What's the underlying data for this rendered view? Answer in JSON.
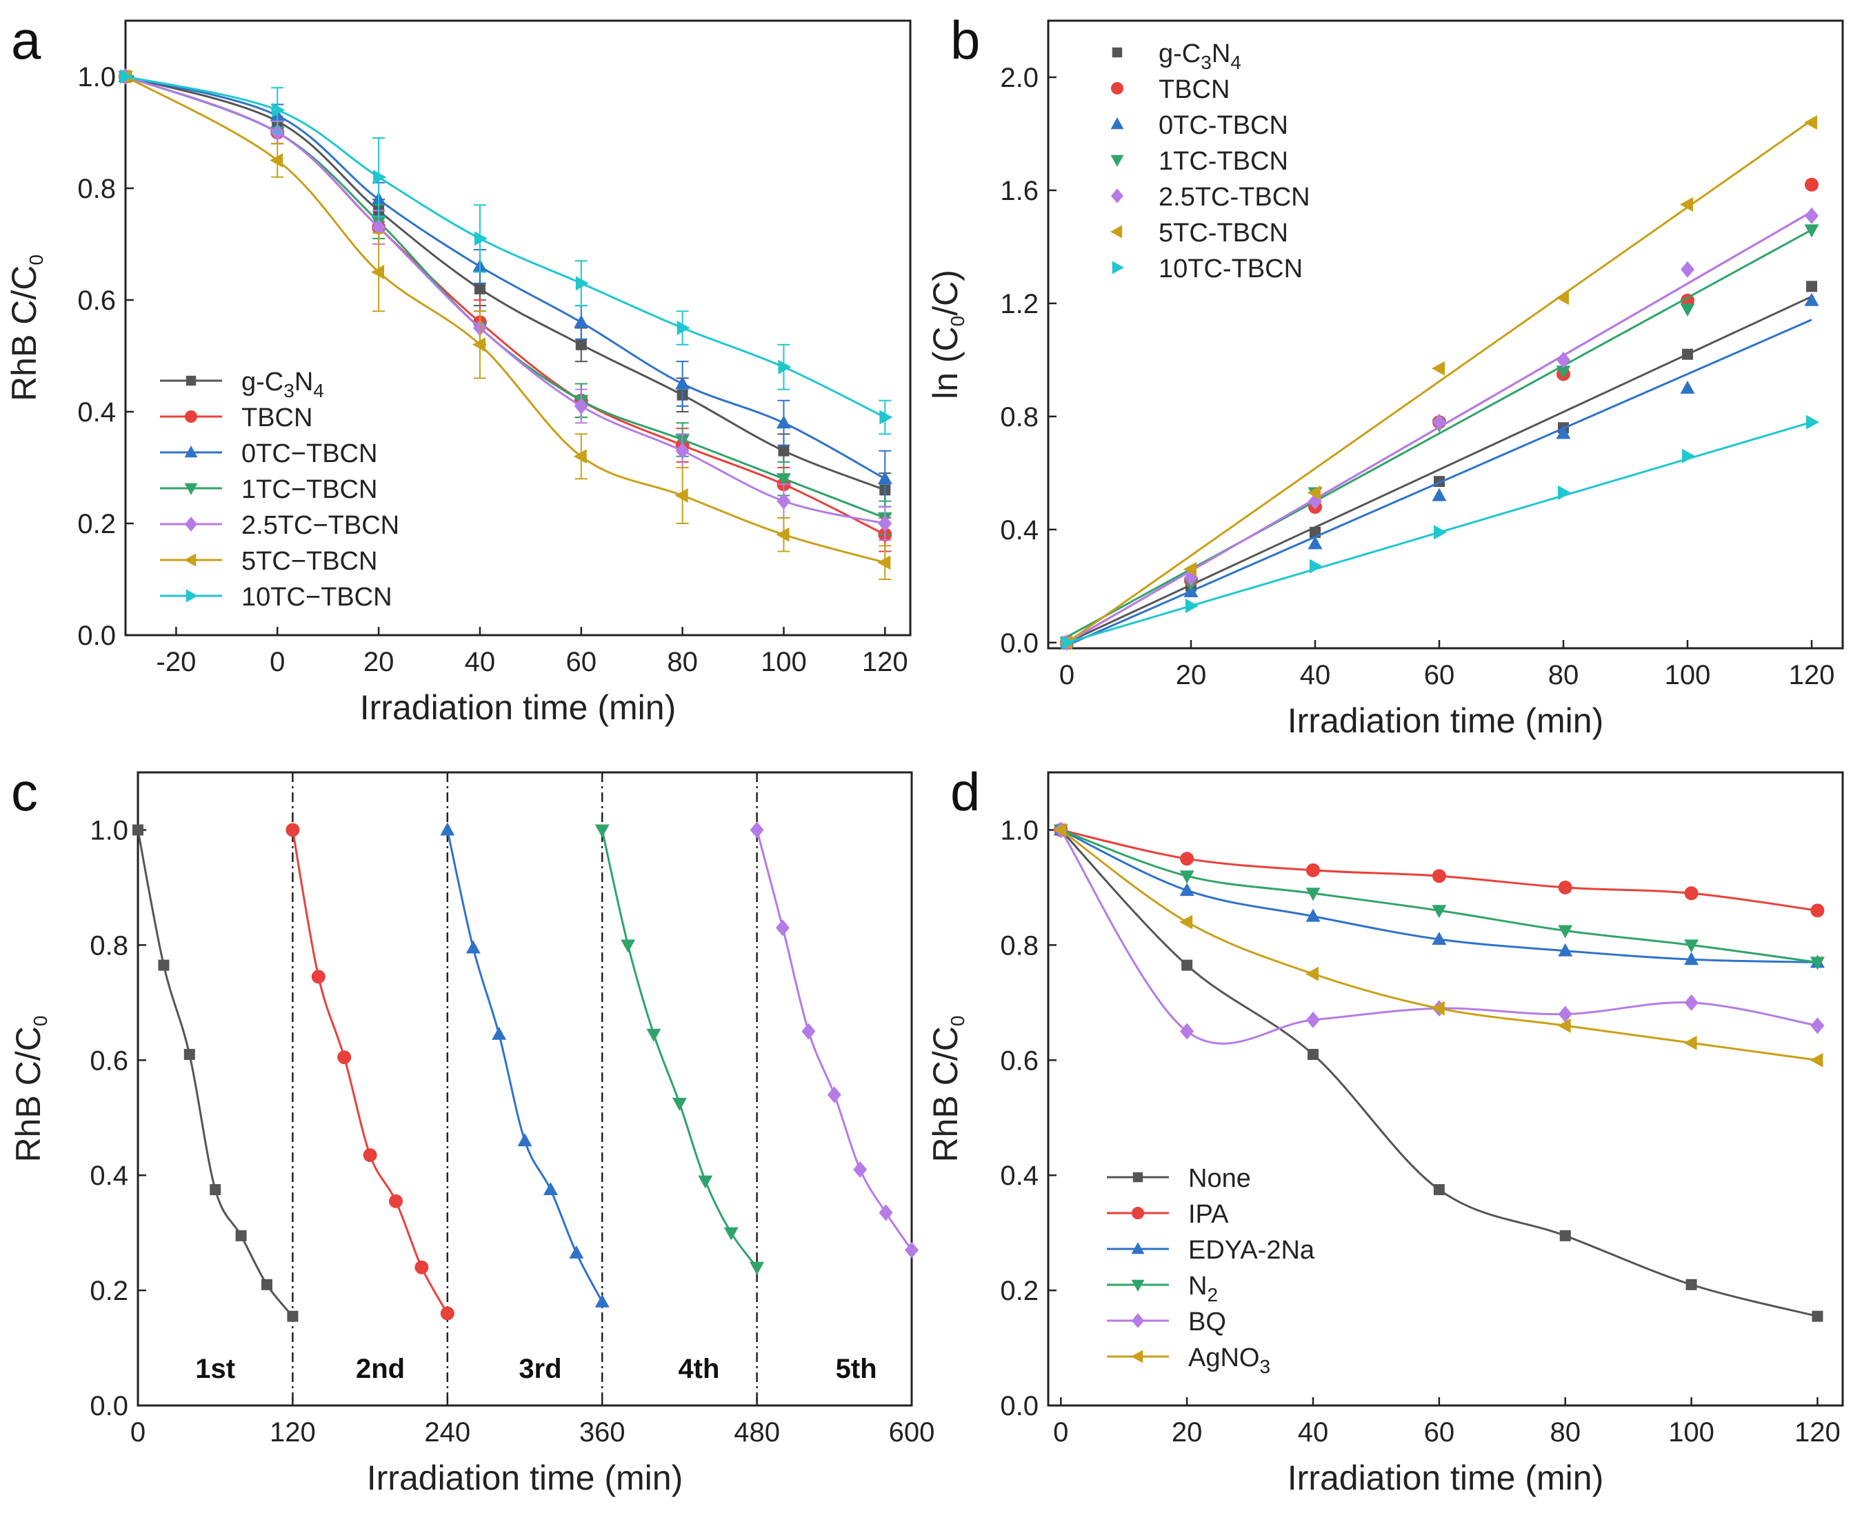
{
  "colors": {
    "g-C3N4": "#555555",
    "TBCN": "#e8413c",
    "0TC-TBCN": "#2f73c9",
    "1TC-TBCN": "#2fa46a",
    "2.5TC-TBCN": "#b57be6",
    "5TC-TBCN": "#c9a018",
    "10TC-TBCN": "#1fc7cf"
  },
  "chart_data": [
    {
      "panel_label": "a",
      "type": "line",
      "xlabel": "Irradiation time (min)",
      "ylabel": "RhB C/C",
      "ylabel_sub": "0",
      "xlim": [
        -30,
        125
      ],
      "ylim": [
        0,
        1.1
      ],
      "xticks": [
        -20,
        0,
        20,
        40,
        60,
        80,
        100,
        120
      ],
      "yticks": [
        0.0,
        0.2,
        0.4,
        0.6,
        0.8,
        1.0
      ],
      "legend": "bottom-left",
      "x": [
        -30,
        0,
        20,
        40,
        60,
        80,
        100,
        120
      ],
      "series": [
        {
          "name": "g-C3N4",
          "label": "g-C",
          "sub1": "3",
          "mid": "N",
          "sub2": "4",
          "marker": "square",
          "values": [
            1.0,
            0.92,
            0.76,
            0.62,
            0.52,
            0.43,
            0.33,
            0.26
          ],
          "errors": [
            0,
            0.02,
            0.02,
            0.03,
            0.03,
            0.03,
            0.03,
            0.03
          ]
        },
        {
          "name": "TBCN",
          "label": "TBCN",
          "marker": "circle",
          "values": [
            1.0,
            0.9,
            0.73,
            0.56,
            0.42,
            0.34,
            0.27,
            0.18
          ],
          "errors": [
            0,
            0.02,
            0.03,
            0.04,
            0.03,
            0.03,
            0.03,
            0.03
          ]
        },
        {
          "name": "0TC-TBCN",
          "label": "0TC−TBCN",
          "marker": "triangle-up",
          "values": [
            1.0,
            0.93,
            0.78,
            0.66,
            0.56,
            0.45,
            0.38,
            0.28
          ],
          "errors": [
            0,
            0.02,
            0.03,
            0.03,
            0.03,
            0.04,
            0.04,
            0.05
          ]
        },
        {
          "name": "1TC-TBCN",
          "label": "1TC−TBCN",
          "marker": "triangle-down",
          "values": [
            1.0,
            0.9,
            0.74,
            0.55,
            0.42,
            0.35,
            0.28,
            0.21
          ],
          "errors": [
            0,
            0.02,
            0.03,
            0.03,
            0.03,
            0.03,
            0.03,
            0.03
          ]
        },
        {
          "name": "2.5TC-TBCN",
          "label": "2.5TC−TBCN",
          "marker": "diamond",
          "values": [
            1.0,
            0.9,
            0.73,
            0.55,
            0.41,
            0.33,
            0.24,
            0.2
          ],
          "errors": [
            0,
            0.02,
            0.03,
            0.03,
            0.03,
            0.03,
            0.03,
            0.03
          ]
        },
        {
          "name": "5TC-TBCN",
          "label": "5TC−TBCN",
          "marker": "triangle-left",
          "values": [
            1.0,
            0.85,
            0.65,
            0.52,
            0.32,
            0.25,
            0.18,
            0.13
          ],
          "errors": [
            0,
            0.03,
            0.07,
            0.06,
            0.04,
            0.05,
            0.03,
            0.03
          ]
        },
        {
          "name": "10TC-TBCN",
          "label": "10TC−TBCN",
          "marker": "triangle-right",
          "values": [
            1.0,
            0.94,
            0.82,
            0.71,
            0.63,
            0.55,
            0.48,
            0.39
          ],
          "errors": [
            0,
            0.04,
            0.07,
            0.06,
            0.04,
            0.03,
            0.04,
            0.03
          ]
        }
      ]
    },
    {
      "panel_label": "b",
      "type": "scatter",
      "xlabel": "Irradiation time (min)",
      "ylabel": "ln (C",
      "ylabel_sub": "0",
      "ylabel_end": "/C)",
      "xlim": [
        -3,
        125
      ],
      "ylim": [
        -0.02,
        2.2
      ],
      "xticks": [
        0,
        20,
        40,
        60,
        80,
        100,
        120
      ],
      "yticks": [
        0.0,
        0.4,
        0.8,
        1.2,
        1.6,
        2.0
      ],
      "legend": "top-left",
      "x": [
        0,
        20,
        40,
        60,
        80,
        100,
        120
      ],
      "series": [
        {
          "name": "g-C3N4",
          "label": "g-C",
          "sub1": "3",
          "mid": "N",
          "sub2": "4",
          "marker": "square",
          "values": [
            0.0,
            0.2,
            0.39,
            0.57,
            0.76,
            1.02,
            1.26
          ],
          "fit_slope": 0.0102,
          "fit_intercept": 0.0
        },
        {
          "name": "TBCN",
          "label": "TBCN",
          "marker": "circle",
          "values": [
            0.0,
            0.22,
            0.48,
            0.78,
            0.95,
            1.21,
            1.62
          ],
          "fit_slope": 0.0127,
          "fit_intercept": 0.0
        },
        {
          "name": "0TC-TBCN",
          "label": "0TC-TBCN",
          "marker": "triangle-up",
          "values": [
            0.0,
            0.18,
            0.35,
            0.52,
            0.74,
            0.9,
            1.21
          ],
          "fit_slope": 0.0096,
          "fit_intercept": -0.01
        },
        {
          "name": "1TC-TBCN",
          "label": "1TC-TBCN",
          "marker": "triangle-down",
          "values": [
            0.0,
            0.21,
            0.53,
            0.77,
            0.96,
            1.18,
            1.46
          ],
          "fit_slope": 0.012,
          "fit_intercept": 0.02
        },
        {
          "name": "2.5TC-TBCN",
          "label": "2.5TC-TBCN",
          "marker": "diamond",
          "values": [
            0.0,
            0.23,
            0.5,
            0.78,
            1.0,
            1.32,
            1.51
          ],
          "fit_slope": 0.0127,
          "fit_intercept": 0.0
        },
        {
          "name": "5TC-TBCN",
          "label": "5TC-TBCN",
          "marker": "triangle-left",
          "values": [
            0.0,
            0.26,
            0.53,
            0.97,
            1.22,
            1.55,
            1.84
          ],
          "fit_slope": 0.0154,
          "fit_intercept": 0.0
        },
        {
          "name": "10TC-TBCN",
          "label": "10TC-TBCN",
          "marker": "triangle-right",
          "values": [
            0.0,
            0.13,
            0.27,
            0.39,
            0.53,
            0.66,
            0.78
          ],
          "fit_slope": 0.0065,
          "fit_intercept": 0.0
        }
      ]
    },
    {
      "panel_label": "c",
      "type": "line",
      "xlabel": "Irradiation time (min)",
      "ylabel": "RhB C/C",
      "ylabel_sub": "0",
      "xlim": [
        0,
        600
      ],
      "ylim": [
        0,
        1.1
      ],
      "xticks": [
        0,
        120,
        240,
        360,
        480,
        600
      ],
      "yticks": [
        0.0,
        0.2,
        0.4,
        0.6,
        0.8,
        1.0
      ],
      "dividers": [
        120,
        240,
        360,
        480
      ],
      "cycle_labels": [
        "1st",
        "2nd",
        "3rd",
        "4th",
        "5th"
      ],
      "cycle_label_x": [
        60,
        188,
        312,
        435,
        557
      ],
      "cycle_label_y": 0.065,
      "series": [
        {
          "name": "cycle-1",
          "color": "#555555",
          "marker": "square",
          "x": [
            0,
            20,
            40,
            60,
            80,
            100,
            120
          ],
          "values": [
            1.0,
            0.765,
            0.61,
            0.375,
            0.295,
            0.21,
            0.155
          ]
        },
        {
          "name": "cycle-2",
          "color": "#e8413c",
          "marker": "circle",
          "x": [
            120,
            140,
            160,
            180,
            200,
            220,
            240
          ],
          "values": [
            1.0,
            0.745,
            0.605,
            0.435,
            0.355,
            0.24,
            0.16
          ]
        },
        {
          "name": "cycle-3",
          "color": "#2f73c9",
          "marker": "triangle-up",
          "x": [
            240,
            260,
            280,
            300,
            320,
            340,
            360
          ],
          "values": [
            1.0,
            0.795,
            0.645,
            0.46,
            0.375,
            0.265,
            0.18
          ]
        },
        {
          "name": "cycle-4",
          "color": "#2fa46a",
          "marker": "triangle-down",
          "x": [
            360,
            380,
            400,
            420,
            440,
            460,
            480
          ],
          "values": [
            1.0,
            0.8,
            0.645,
            0.525,
            0.39,
            0.3,
            0.24
          ]
        },
        {
          "name": "cycle-5",
          "color": "#b57be6",
          "marker": "diamond",
          "x": [
            480,
            500,
            520,
            540,
            560,
            580,
            600
          ],
          "values": [
            1.0,
            0.83,
            0.65,
            0.54,
            0.41,
            0.335,
            0.27
          ]
        }
      ]
    },
    {
      "panel_label": "d",
      "type": "line",
      "xlabel": "Irradiation time (min)",
      "ylabel": "RhB C/C",
      "ylabel_sub": "0",
      "xlim": [
        -2,
        124
      ],
      "ylim": [
        0,
        1.1
      ],
      "xticks": [
        0,
        20,
        40,
        60,
        80,
        100,
        120
      ],
      "yticks": [
        0.0,
        0.2,
        0.4,
        0.6,
        0.8,
        1.0
      ],
      "legend": "bottom-left",
      "x": [
        0,
        20,
        40,
        60,
        80,
        100,
        120
      ],
      "series": [
        {
          "name": "None",
          "label": "None",
          "color": "#555555",
          "marker": "square",
          "values": [
            1.0,
            0.765,
            0.61,
            0.375,
            0.295,
            0.21,
            0.155
          ]
        },
        {
          "name": "IPA",
          "label": "IPA",
          "color": "#e8413c",
          "marker": "circle",
          "values": [
            1.0,
            0.95,
            0.93,
            0.92,
            0.9,
            0.89,
            0.86
          ]
        },
        {
          "name": "EDYA-2Na",
          "label": "EDYA-2Na",
          "color": "#2f73c9",
          "marker": "triangle-up",
          "values": [
            1.0,
            0.895,
            0.85,
            0.81,
            0.79,
            0.775,
            0.77
          ]
        },
        {
          "name": "N2",
          "label": "N",
          "sub1": "2",
          "color": "#2fa46a",
          "marker": "triangle-down",
          "values": [
            1.0,
            0.92,
            0.89,
            0.86,
            0.825,
            0.8,
            0.77
          ]
        },
        {
          "name": "BQ",
          "label": "BQ",
          "color": "#b57be6",
          "marker": "diamond",
          "values": [
            1.0,
            0.65,
            0.67,
            0.69,
            0.68,
            0.7,
            0.66
          ]
        },
        {
          "name": "AgNO3",
          "label": "AgNO",
          "sub1": "3",
          "color": "#c9a018",
          "marker": "triangle-left",
          "values": [
            1.0,
            0.84,
            0.75,
            0.69,
            0.66,
            0.63,
            0.6
          ]
        }
      ]
    }
  ]
}
